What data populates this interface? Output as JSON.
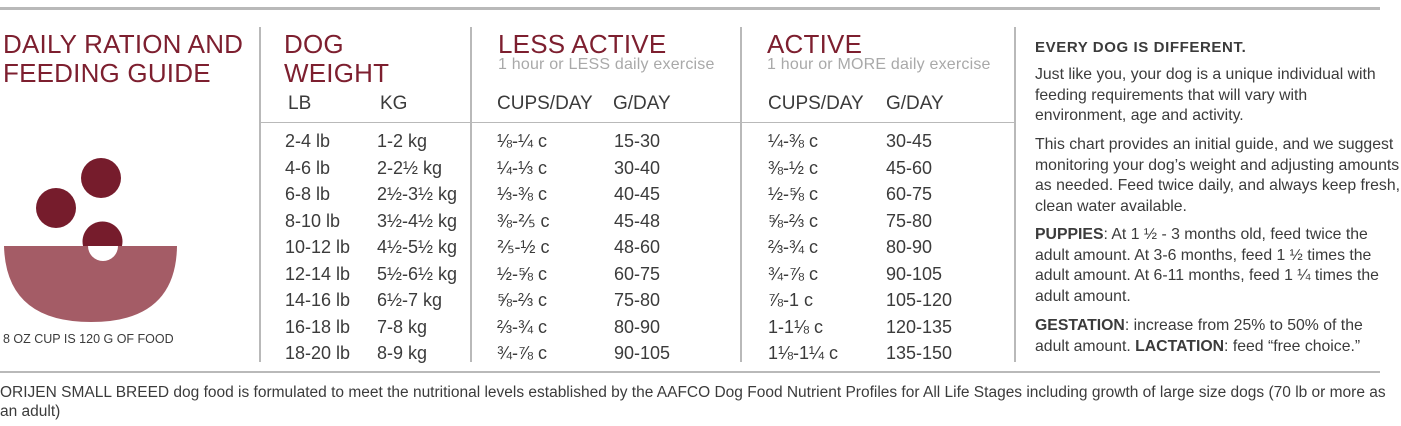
{
  "guide_title_line1": "DAILY RATION AND",
  "guide_title_line2": "FEEDING GUIDE",
  "cup_caption": "8 OZ CUP IS 120 G OF FOOD",
  "weight_header_line1": "DOG",
  "weight_header_line2": "WEIGHT",
  "less_active_header": "LESS ACTIVE",
  "less_active_sub": "1 hour or LESS daily exercise",
  "active_header": "ACTIVE",
  "active_sub": "1 hour or MORE daily exercise",
  "col_lb": "LB",
  "col_kg": "KG",
  "col_cups_less": "CUPS/DAY",
  "col_g_less": "G/DAY",
  "col_cups_active": "CUPS/DAY",
  "col_g_active": "G/DAY",
  "rows": [
    {
      "lb": "2-4 lb",
      "kg": "1-2 kg",
      "less_cups": "⅛-¼ c",
      "less_g": "15-30",
      "act_cups": "¼-⅜ c",
      "act_g": "30-45"
    },
    {
      "lb": "4-6 lb",
      "kg": "2-2½ kg",
      "less_cups": "¼-⅓ c",
      "less_g": "30-40",
      "act_cups": "⅜-½ c",
      "act_g": "45-60"
    },
    {
      "lb": "6-8 lb",
      "kg": "2½-3½ kg",
      "less_cups": "⅓-⅜ c",
      "less_g": "40-45",
      "act_cups": "½-⅝ c",
      "act_g": "60-75"
    },
    {
      "lb": "8-10 lb",
      "kg": "3½-4½ kg",
      "less_cups": "⅜-⅖ c",
      "less_g": "45-48",
      "act_cups": "⅝-⅔ c",
      "act_g": "75-80"
    },
    {
      "lb": "10-12 lb",
      "kg": "4½-5½ kg",
      "less_cups": "⅖-½ c",
      "less_g": "48-60",
      "act_cups": "⅔-¾ c",
      "act_g": "80-90"
    },
    {
      "lb": "12-14 lb",
      "kg": "5½-6½ kg",
      "less_cups": "½-⅝ c",
      "less_g": "60-75",
      "act_cups": "¾-⅞ c",
      "act_g": "90-105"
    },
    {
      "lb": "14-16 lb",
      "kg": "6½-7 kg",
      "less_cups": "⅝-⅔ c",
      "less_g": "75-80",
      "act_cups": "⅞-1 c",
      "act_g": "105-120"
    },
    {
      "lb": "16-18 lb",
      "kg": "7-8 kg",
      "less_cups": "⅔-¾ c",
      "less_g": "80-90",
      "act_cups": "1-1⅛ c",
      "act_g": "120-135"
    },
    {
      "lb": "18-20 lb",
      "kg": "8-9 kg",
      "less_cups": "¾-⅞ c",
      "less_g": "90-105",
      "act_cups": "1⅛-1¼ c",
      "act_g": "135-150"
    }
  ],
  "notes": {
    "heading": "EVERY DOG IS DIFFERENT.",
    "para1": "Just like you, your dog is a unique individual with feeding requirements that will vary with environment, age and activity.",
    "para2": "This chart provides an initial guide, and we suggest monitoring your dog’s weight and adjusting amounts as needed. Feed twice daily, and always keep fresh, clean water available.",
    "puppies_label": "PUPPIES",
    "puppies_text": ": At 1 ½ - 3 months old, feed twice the adult amount. At 3-6 months, feed 1 ½ times the adult amount. At 6-11 months, feed 1 ¼ times the adult amount.",
    "gestation_label": "GESTATION",
    "gestation_text": ": increase from 25% to 50% of the adult amount. ",
    "lactation_label": "LACTATION",
    "lactation_text": ": feed “free choice.”"
  },
  "footer": "ORIJEN SMALL BREED dog food is formulated to meet the nutritional levels established by the AAFCO Dog Food Nutrient Profiles for All Life Stages including growth of large size dogs (70 lb or more as an adult)",
  "colors": {
    "maroon": "#7d1f2f",
    "bowl": "#a45c66",
    "kibble": "#761c2c",
    "rule": "#b9b9b9"
  }
}
